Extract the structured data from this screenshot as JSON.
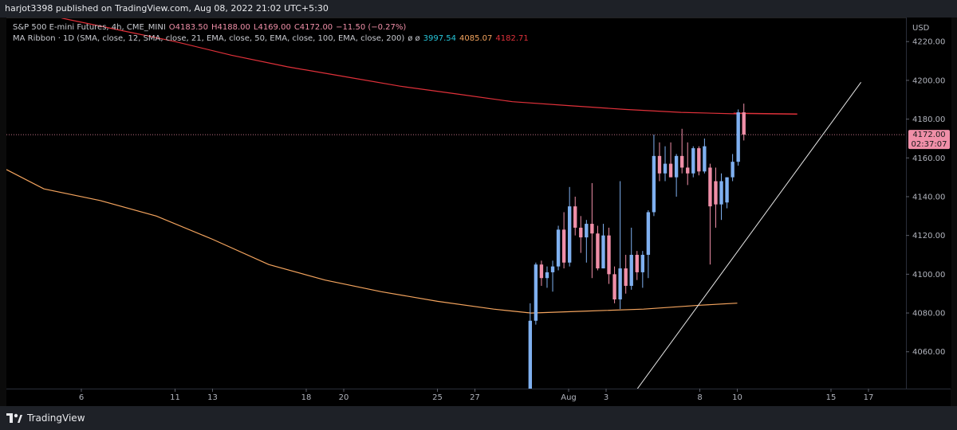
{
  "header": {
    "published": "harjot3398 published on TradingView.com, Aug 08, 2022 21:02 UTC+5:30"
  },
  "legend": {
    "symbol_line": "S&P 500 E-mini Futures, 4h, CME_MINI",
    "open": "O4183.50",
    "high": "H4188.00",
    "low": "L4169.00",
    "close": "C4172.00",
    "change": "−11.50 (−0.27%)",
    "ribbon_line": "MA Ribbon · 1D (SMA, close, 12, SMA, close, 21, EMA, close, 50, EMA, close, 100, EMA, close, 200)",
    "eye_glyphs": "ø  ø",
    "ma_values": [
      "3997.54",
      "4085.07",
      "4182.71"
    ]
  },
  "price_scale": {
    "currency": "USD",
    "last_price": "4172.00",
    "countdown": "02:37:07"
  },
  "footer": {
    "brand": "TradingView",
    "logo_icon": "tradingview-logo-icon"
  },
  "colors": {
    "background": "#000000",
    "up": "#7fb0f0",
    "down": "#f08fa8",
    "ma_red": "#e0313a",
    "ma_orange": "#f4a45e",
    "ma_cyan": "#26c6da",
    "trendline": "#e6e6e6",
    "last_price_bg": "#f08fa8"
  },
  "chart_data": {
    "type": "candlestick",
    "symbol": "S&P 500 E-mini Futures",
    "interval": "4h",
    "y_axis": {
      "ticks": [
        4060,
        4080,
        4100,
        4120,
        4140,
        4160,
        4180,
        4200,
        4220
      ],
      "tick_labels": [
        "4060.00",
        "4080.00",
        "4100.00",
        "4120.00",
        "4140.00",
        "4160.00",
        "4180.00",
        "4200.00",
        "4220.00"
      ],
      "ylim": [
        4041,
        4232
      ]
    },
    "x_axis": {
      "tick_labels": [
        "6",
        "11",
        "13",
        "18",
        "20",
        "25",
        "27",
        "Aug",
        "3",
        "8",
        "10",
        "15",
        "17"
      ],
      "tick_days": [
        6,
        11,
        13,
        18,
        20,
        25,
        27,
        32,
        34,
        39,
        41,
        46,
        48
      ],
      "day_numbering": "day 1 = Jul 1, 2022",
      "xlim": [
        2,
        50
      ]
    },
    "last_price_line": 4172.0,
    "candles": [
      {
        "d": 29.95,
        "o": 4020,
        "h": 4085,
        "l": 4010,
        "c": 4076
      },
      {
        "d": 30.25,
        "o": 4076,
        "h": 4106,
        "l": 4074,
        "c": 4105
      },
      {
        "d": 30.55,
        "o": 4105,
        "h": 4107,
        "l": 4094,
        "c": 4098
      },
      {
        "d": 30.85,
        "o": 4098,
        "h": 4104,
        "l": 4093,
        "c": 4101
      },
      {
        "d": 31.15,
        "o": 4101,
        "h": 4107,
        "l": 4091,
        "c": 4104
      },
      {
        "d": 31.45,
        "o": 4104,
        "h": 4125,
        "l": 4102,
        "c": 4123
      },
      {
        "d": 31.75,
        "o": 4123,
        "h": 4132,
        "l": 4103,
        "c": 4106
      },
      {
        "d": 32.05,
        "o": 4106,
        "h": 4145,
        "l": 4104,
        "c": 4135
      },
      {
        "d": 32.35,
        "o": 4135,
        "h": 4140,
        "l": 4120,
        "c": 4124
      },
      {
        "d": 32.65,
        "o": 4124,
        "h": 4130,
        "l": 4111,
        "c": 4119
      },
      {
        "d": 32.95,
        "o": 4119,
        "h": 4128,
        "l": 4106,
        "c": 4126
      },
      {
        "d": 33.25,
        "o": 4126,
        "h": 4147,
        "l": 4098,
        "c": 4121
      },
      {
        "d": 33.55,
        "o": 4121,
        "h": 4125,
        "l": 4102,
        "c": 4103
      },
      {
        "d": 33.85,
        "o": 4103,
        "h": 4126,
        "l": 4103,
        "c": 4120
      },
      {
        "d": 34.15,
        "o": 4120,
        "h": 4124,
        "l": 4095,
        "c": 4100
      },
      {
        "d": 34.45,
        "o": 4100,
        "h": 4104,
        "l": 4085,
        "c": 4087
      },
      {
        "d": 34.75,
        "o": 4087,
        "h": 4148,
        "l": 4082,
        "c": 4103
      },
      {
        "d": 35.05,
        "o": 4103,
        "h": 4110,
        "l": 4090,
        "c": 4094
      },
      {
        "d": 35.35,
        "o": 4094,
        "h": 4124,
        "l": 4092,
        "c": 4110
      },
      {
        "d": 35.65,
        "o": 4110,
        "h": 4112,
        "l": 4097,
        "c": 4101
      },
      {
        "d": 35.95,
        "o": 4101,
        "h": 4112,
        "l": 4093,
        "c": 4110
      },
      {
        "d": 36.25,
        "o": 4110,
        "h": 4133,
        "l": 4098,
        "c": 4132
      },
      {
        "d": 36.55,
        "o": 4132,
        "h": 4172,
        "l": 4130,
        "c": 4161
      },
      {
        "d": 36.85,
        "o": 4161,
        "h": 4168,
        "l": 4148,
        "c": 4152
      },
      {
        "d": 37.15,
        "o": 4152,
        "h": 4166,
        "l": 4148,
        "c": 4157
      },
      {
        "d": 37.45,
        "o": 4157,
        "h": 4168,
        "l": 4150,
        "c": 4150
      },
      {
        "d": 37.75,
        "o": 4150,
        "h": 4162,
        "l": 4140,
        "c": 4161
      },
      {
        "d": 38.05,
        "o": 4161,
        "h": 4175,
        "l": 4152,
        "c": 4155
      },
      {
        "d": 38.35,
        "o": 4155,
        "h": 4168,
        "l": 4146,
        "c": 4152
      },
      {
        "d": 38.65,
        "o": 4152,
        "h": 4166,
        "l": 4150,
        "c": 4165
      },
      {
        "d": 38.95,
        "o": 4165,
        "h": 4166,
        "l": 4151,
        "c": 4153
      },
      {
        "d": 39.25,
        "o": 4153,
        "h": 4170,
        "l": 4152,
        "c": 4166
      },
      {
        "d": 39.55,
        "o": 4155,
        "h": 4157,
        "l": 4105,
        "c": 4135
      },
      {
        "d": 39.85,
        "o": 4148,
        "h": 4155,
        "l": 4124,
        "c": 4136
      },
      {
        "d": 40.15,
        "o": 4136,
        "h": 4152,
        "l": 4128,
        "c": 4148
      },
      {
        "d": 40.45,
        "o": 4137,
        "h": 4150,
        "l": 4134,
        "c": 4150
      },
      {
        "d": 40.75,
        "o": 4150,
        "h": 4162,
        "l": 4148,
        "c": 4158
      },
      {
        "d": 41.05,
        "o": 4158,
        "h": 4185,
        "l": 4156,
        "c": 4183.5
      },
      {
        "d": 41.35,
        "o": 4183.5,
        "h": 4188,
        "l": 4169,
        "c": 4172
      }
    ],
    "series": [
      {
        "name": "",
        "color": "#e0313a",
        "points": [
          [
            2,
            4240
          ],
          [
            5,
            4232
          ],
          [
            8,
            4226
          ],
          [
            11,
            4220
          ],
          [
            14,
            4213
          ],
          [
            17,
            4207
          ],
          [
            20,
            4202
          ],
          [
            23,
            4197
          ],
          [
            26,
            4193
          ],
          [
            29,
            4189
          ],
          [
            32,
            4187
          ],
          [
            35,
            4185
          ],
          [
            38,
            4183.5
          ],
          [
            41,
            4182.71
          ]
        ]
      },
      {
        "name": "",
        "color": "#f4a45e",
        "points": [
          [
            2,
            4154
          ],
          [
            4,
            4144
          ],
          [
            7,
            4138
          ],
          [
            10,
            4130
          ],
          [
            13,
            4118
          ],
          [
            16,
            4105
          ],
          [
            19,
            4097
          ],
          [
            22,
            4091
          ],
          [
            25,
            4086
          ],
          [
            28,
            4082
          ],
          [
            30,
            4080
          ],
          [
            33,
            4081
          ],
          [
            36,
            4082
          ],
          [
            39,
            4084
          ],
          [
            41,
            4085.07
          ]
        ]
      },
      {
        "name": "",
        "color": "#26c6da",
        "points": []
      }
    ],
    "annotations": [
      {
        "type": "trendline",
        "from": [
          35.6,
          4040
        ],
        "to": [
          47.6,
          4199
        ]
      },
      {
        "type": "horizontal-segment",
        "from": [
          40.8,
          4183
        ],
        "to": [
          44.2,
          4182.6
        ]
      }
    ],
    "grid": false,
    "legend_placement": "top-left"
  }
}
